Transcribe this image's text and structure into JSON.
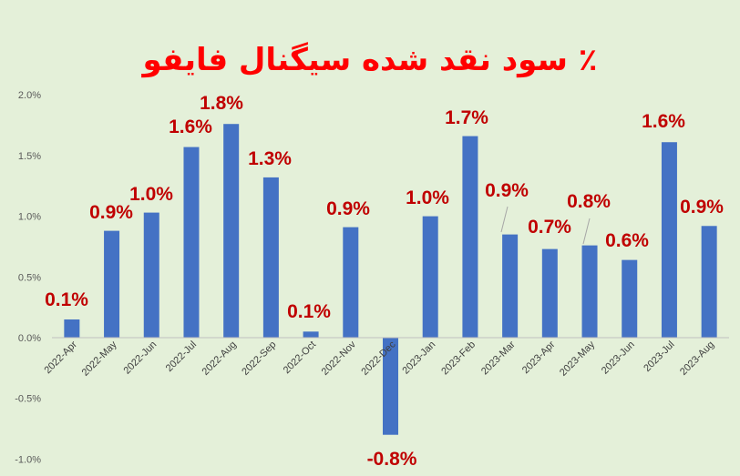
{
  "chart_data": {
    "type": "bar",
    "title": "٪ سود نقد شده سیگنال فایفو",
    "categories": [
      "2022-Apr",
      "2022-May",
      "2022-Jun",
      "2022-Jul",
      "2022-Aug",
      "2022-Sep",
      "2022-Oct",
      "2022-Nov",
      "2022-Dec",
      "2023-Jan",
      "2023-Feb",
      "2023-Mar",
      "2023-Apr",
      "2023-May",
      "2023-Jun",
      "2023-Jul",
      "2023-Aug"
    ],
    "values": [
      0.15,
      0.88,
      1.03,
      1.57,
      1.76,
      1.32,
      0.05,
      0.91,
      -0.8,
      1.0,
      1.66,
      0.85,
      0.73,
      0.76,
      0.64,
      1.61,
      0.92
    ],
    "data_labels": [
      "0.1%",
      "0.9%",
      "1.0%",
      "1.6%",
      "1.8%",
      "1.3%",
      "0.1%",
      "0.9%",
      "-0.8%",
      "1.0%",
      "1.7%",
      "0.9%",
      "0.7%",
      "0.8%",
      "0.6%",
      "1.6%",
      "0.9%"
    ],
    "y_ticks": [
      "-1.0%",
      "-0.5%",
      "0.0%",
      "0.5%",
      "1.0%",
      "1.5%",
      "2.0%"
    ],
    "ylim": [
      -1.0,
      2.0
    ],
    "grid": false,
    "legend": "none",
    "colors": {
      "bar": "#4472c4",
      "label": "#c00000",
      "title": "#ff0000",
      "background": "#e4f0d9",
      "axis_text": "#595959"
    }
  }
}
